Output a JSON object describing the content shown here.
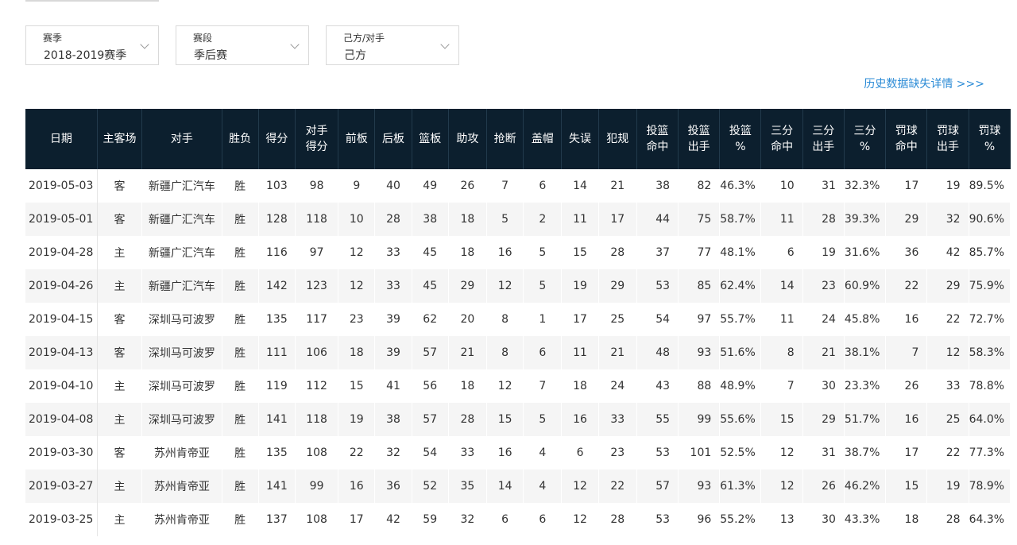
{
  "filters": [
    {
      "label": "赛季",
      "value": "2018-2019赛季"
    },
    {
      "label": "赛段",
      "value": "季后赛"
    },
    {
      "label": "己方/对手",
      "value": "己方"
    }
  ],
  "missing_link": "历史数据缺失详情 >>>",
  "columns": [
    "日期",
    "主客场",
    "对手",
    "胜负",
    "得分",
    "对手得分",
    "前板",
    "后板",
    "篮板",
    "助攻",
    "抢断",
    "盖帽",
    "失误",
    "犯规",
    "投篮命中",
    "投篮出手",
    "投篮%",
    "三分命中",
    "三分出手",
    "三分%",
    "罚球命中",
    "罚球出手",
    "罚球%"
  ],
  "column_display": [
    "日期",
    "主客场",
    "对手",
    "胜负",
    "得分",
    "对手\n得分",
    "前板",
    "后板",
    "篮板",
    "助攻",
    "抢断",
    "盖帽",
    "失误",
    "犯规",
    "投篮\n命中",
    "投篮\n出手",
    "投篮\n%",
    "三分\n命中",
    "三分\n出手",
    "三分\n%",
    "罚球\n命中",
    "罚球\n出手",
    "罚球\n%"
  ],
  "rows": [
    [
      "2019-05-03",
      "客",
      "新疆广汇汽车",
      "胜",
      "103",
      "98",
      "9",
      "40",
      "49",
      "26",
      "7",
      "6",
      "14",
      "21",
      "38",
      "82",
      "46.3%",
      "10",
      "31",
      "32.3%",
      "17",
      "19",
      "89.5%"
    ],
    [
      "2019-05-01",
      "客",
      "新疆广汇汽车",
      "胜",
      "128",
      "118",
      "10",
      "28",
      "38",
      "18",
      "5",
      "2",
      "11",
      "17",
      "44",
      "75",
      "58.7%",
      "11",
      "28",
      "39.3%",
      "29",
      "32",
      "90.6%"
    ],
    [
      "2019-04-28",
      "主",
      "新疆广汇汽车",
      "胜",
      "116",
      "97",
      "12",
      "33",
      "45",
      "18",
      "16",
      "5",
      "15",
      "28",
      "37",
      "77",
      "48.1%",
      "6",
      "19",
      "31.6%",
      "36",
      "42",
      "85.7%"
    ],
    [
      "2019-04-26",
      "主",
      "新疆广汇汽车",
      "胜",
      "142",
      "123",
      "12",
      "33",
      "45",
      "29",
      "12",
      "5",
      "19",
      "29",
      "53",
      "85",
      "62.4%",
      "14",
      "23",
      "60.9%",
      "22",
      "29",
      "75.9%"
    ],
    [
      "2019-04-15",
      "客",
      "深圳马可波罗",
      "胜",
      "135",
      "117",
      "23",
      "39",
      "62",
      "20",
      "8",
      "1",
      "17",
      "25",
      "54",
      "97",
      "55.7%",
      "11",
      "24",
      "45.8%",
      "16",
      "22",
      "72.7%"
    ],
    [
      "2019-04-13",
      "客",
      "深圳马可波罗",
      "胜",
      "111",
      "106",
      "18",
      "39",
      "57",
      "21",
      "8",
      "6",
      "11",
      "21",
      "48",
      "93",
      "51.6%",
      "8",
      "21",
      "38.1%",
      "7",
      "12",
      "58.3%"
    ],
    [
      "2019-04-10",
      "主",
      "深圳马可波罗",
      "胜",
      "119",
      "112",
      "15",
      "41",
      "56",
      "18",
      "12",
      "7",
      "18",
      "24",
      "43",
      "88",
      "48.9%",
      "7",
      "30",
      "23.3%",
      "26",
      "33",
      "78.8%"
    ],
    [
      "2019-04-08",
      "主",
      "深圳马可波罗",
      "胜",
      "141",
      "118",
      "19",
      "38",
      "57",
      "28",
      "15",
      "5",
      "16",
      "33",
      "55",
      "99",
      "55.6%",
      "15",
      "29",
      "51.7%",
      "16",
      "25",
      "64.0%"
    ],
    [
      "2019-03-30",
      "客",
      "苏州肯帝亚",
      "胜",
      "135",
      "108",
      "22",
      "32",
      "54",
      "33",
      "16",
      "4",
      "6",
      "23",
      "53",
      "101",
      "52.5%",
      "12",
      "31",
      "38.7%",
      "17",
      "22",
      "77.3%"
    ],
    [
      "2019-03-27",
      "主",
      "苏州肯帝亚",
      "胜",
      "141",
      "99",
      "16",
      "36",
      "52",
      "35",
      "14",
      "4",
      "12",
      "22",
      "57",
      "93",
      "61.3%",
      "12",
      "26",
      "46.2%",
      "15",
      "19",
      "78.9%"
    ],
    [
      "2019-03-25",
      "主",
      "苏州肯帝亚",
      "胜",
      "137",
      "108",
      "17",
      "42",
      "59",
      "32",
      "6",
      "6",
      "12",
      "28",
      "53",
      "96",
      "55.2%",
      "13",
      "30",
      "43.3%",
      "18",
      "28",
      "64.3%"
    ]
  ],
  "colors": {
    "header_bg": "#0c1f2e",
    "link": "#2b8bd6",
    "stripe": "#f5f5f5"
  }
}
